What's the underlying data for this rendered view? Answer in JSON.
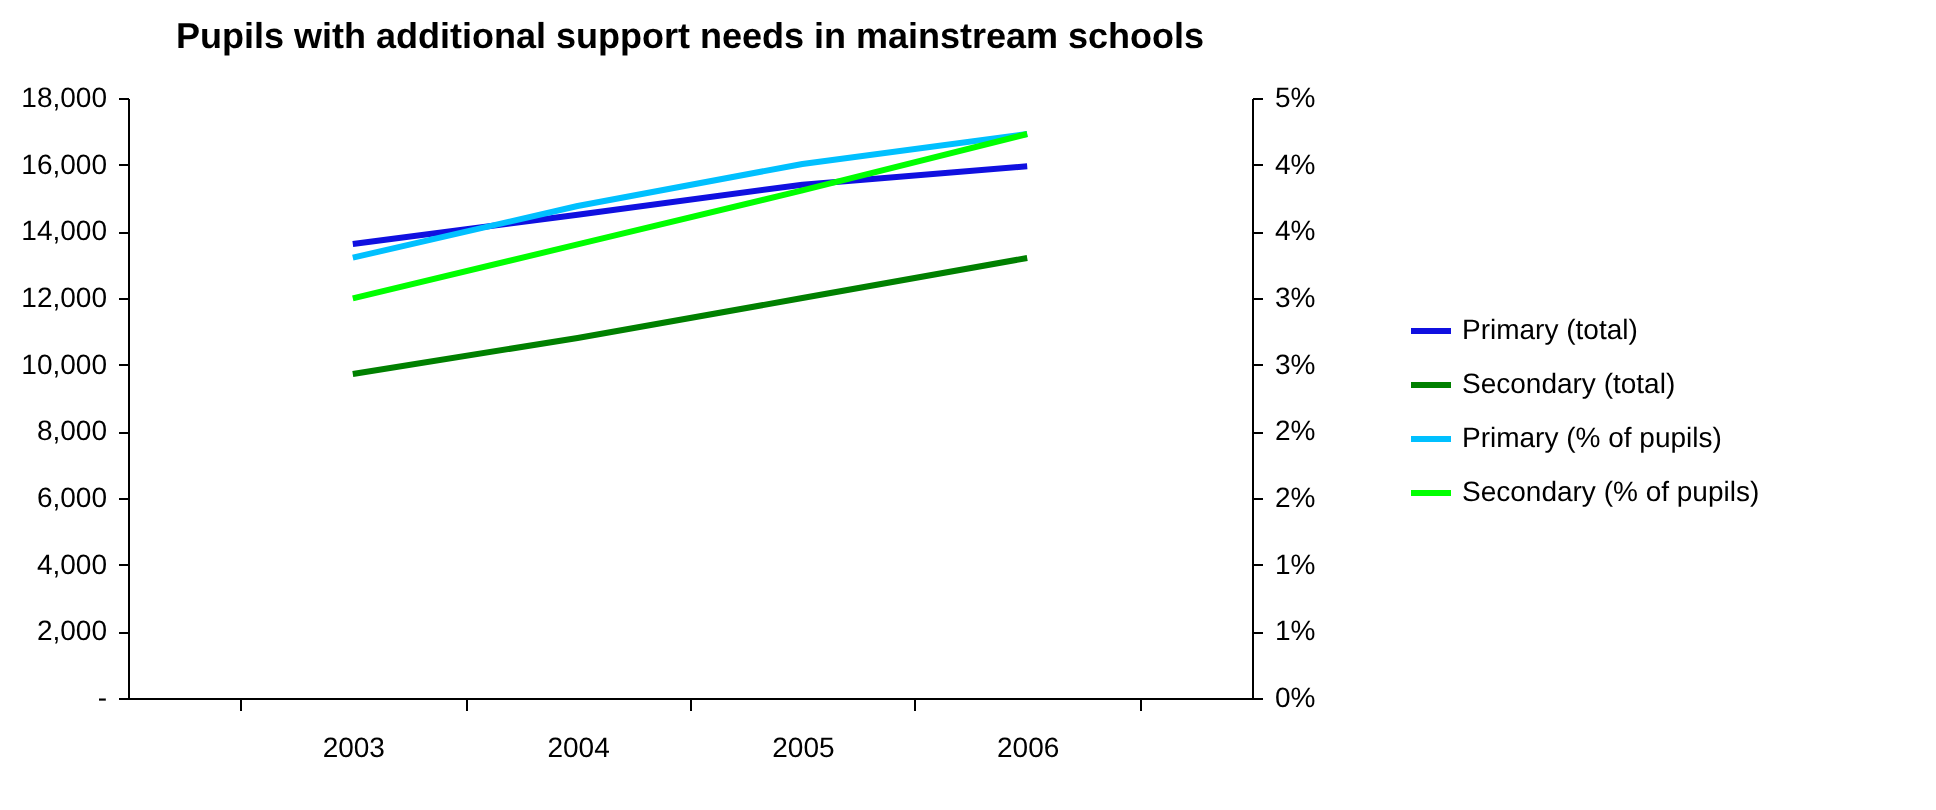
{
  "chart_data": {
    "type": "line",
    "title": "Pupils with additional support needs in mainstream schools",
    "categories": [
      "2003",
      "2004",
      "2005",
      "2006"
    ],
    "series": [
      {
        "name": "Primary (total)",
        "color": "#1010e0",
        "values": [
          13620,
          14500,
          15400,
          15950
        ]
      },
      {
        "name": "Secondary (total)",
        "color": "#008000",
        "values": [
          9720,
          10800,
          12000,
          13200
        ]
      },
      {
        "name": "Primary (% of pupils)",
        "color": "#00c0ff",
        "values": [
          3.67,
          4.1,
          4.45,
          4.7
        ],
        "axis": "y2"
      },
      {
        "name": "Secondary (% of pupils)",
        "color": "#00ff00",
        "values": [
          3.33,
          3.78,
          4.23,
          4.7
        ],
        "axis": "y2"
      }
    ],
    "ylim": [
      0,
      18000
    ],
    "yticks": [
      {
        "value": 0,
        "label": "-"
      },
      {
        "value": 2000,
        "label": "2,000"
      },
      {
        "value": 4000,
        "label": "4,000"
      },
      {
        "value": 6000,
        "label": "6,000"
      },
      {
        "value": 8000,
        "label": "8,000"
      },
      {
        "value": 10000,
        "label": "10,000"
      },
      {
        "value": 12000,
        "label": "12,000"
      },
      {
        "value": 14000,
        "label": "14,000"
      },
      {
        "value": 16000,
        "label": "16,000"
      },
      {
        "value": 18000,
        "label": "18,000"
      }
    ],
    "y2lim": [
      0,
      5
    ],
    "y2ticks": [
      {
        "value": 0,
        "label": "0%"
      },
      {
        "value": 0.556,
        "label": "1%"
      },
      {
        "value": 1.111,
        "label": "1%"
      },
      {
        "value": 1.667,
        "label": "2%"
      },
      {
        "value": 2.222,
        "label": "2%"
      },
      {
        "value": 2.778,
        "label": "3%"
      },
      {
        "value": 3.333,
        "label": "3%"
      },
      {
        "value": 3.889,
        "label": "4%"
      },
      {
        "value": 4.444,
        "label": "4%"
      },
      {
        "value": 5,
        "label": "5%"
      }
    ],
    "legend": "right",
    "grid": false
  }
}
